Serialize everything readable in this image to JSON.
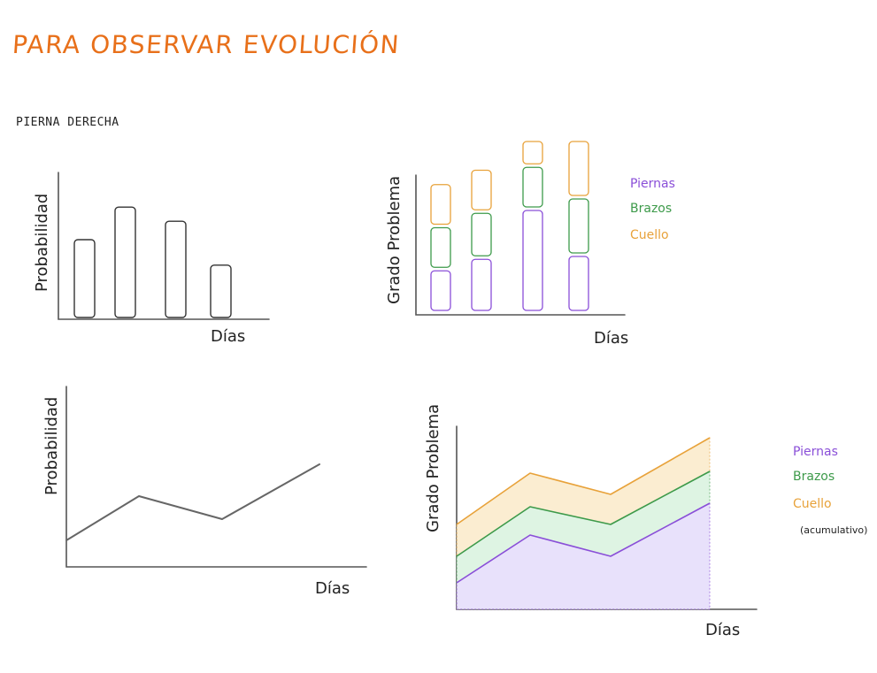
{
  "title": "PARA OBSERVAR EVOLUCIÓN",
  "subtitle": "PIERNA DERECHA",
  "colors": {
    "title": "#e8701a",
    "piernas": "#8a4fd8",
    "brazos": "#3d9a4a",
    "cuello": "#e8a23a",
    "ink": "#222222"
  },
  "chart_data": [
    {
      "type": "bar",
      "xlabel": "Días",
      "ylabel": "Probabilidad",
      "ylim": [
        0,
        100
      ],
      "values": [
        55,
        78,
        68,
        37
      ]
    },
    {
      "type": "bar",
      "stacked": true,
      "xlabel": "Días",
      "ylabel": "Grado Problema",
      "ylim": [
        0,
        120
      ],
      "series": [
        {
          "name": "Piernas",
          "values": [
            30,
            38,
            72,
            40
          ]
        },
        {
          "name": "Brazos",
          "values": [
            30,
            32,
            30,
            40
          ]
        },
        {
          "name": "Cuello",
          "values": [
            30,
            30,
            18,
            40
          ]
        }
      ],
      "legend": "right"
    },
    {
      "type": "line",
      "xlabel": "Días",
      "ylabel": "Probabilidad",
      "ylim": [
        0,
        100
      ],
      "x": [
        0,
        1,
        2,
        3
      ],
      "values": [
        15,
        40,
        27,
        58
      ]
    },
    {
      "type": "area",
      "stacked": true,
      "xlabel": "Días",
      "ylabel": "Grado Problema",
      "ylim": [
        0,
        100
      ],
      "x": [
        0,
        1,
        2,
        3
      ],
      "series": [
        {
          "name": "Piernas",
          "values": [
            15,
            42,
            30,
            60
          ]
        },
        {
          "name": "Brazos",
          "values": [
            30,
            58,
            48,
            78
          ]
        },
        {
          "name": "Cuello",
          "values": [
            48,
            77,
            65,
            97
          ]
        }
      ],
      "legend": "right",
      "note": "(acumulativo)"
    }
  ]
}
